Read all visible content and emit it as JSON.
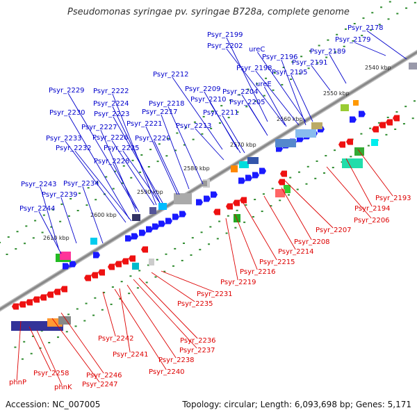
{
  "title": "Pseudomonas syringae pv. syringae B728a, complete genome",
  "footer": {
    "accession": "Accession: NC_007005",
    "summary": "Topology: circular; Length: 6,093,698 bp; Genes: 5,171"
  },
  "colors": {
    "forward_label": "#0000cc",
    "reverse_label": "#dd0000",
    "forward_gene": "#1a1aff",
    "reverse_gene": "#ee1111",
    "backbone": "#888888",
    "ruler_dot": "#2e8b2e"
  },
  "kbp_labels": [
    "2540 kbp",
    "2550 kbp",
    "2560 kbp",
    "2570 kbp",
    "2580 kbp",
    "2590 kbp",
    "2600 kbp",
    "2610 kbp"
  ],
  "forward_labels": [
    "Psyr_2199",
    "Psyr_2178",
    "Psyr_2202",
    "ureC",
    "Psyr_2179",
    "Psyr_2196",
    "Psyr_2189",
    "Psyr_2198",
    "Psyr_2191",
    "Psyr_2195",
    "Psyr_2212",
    "ureE",
    "Psyr_2229",
    "Psyr_2222",
    "Psyr_2209",
    "Psyr_2204",
    "Psyr_2224",
    "Psyr_2218",
    "Psyr_2210",
    "Psyr_2205",
    "Psyr_2230",
    "Psyr_2223",
    "Psyr_2217",
    "Psyr_2211",
    "Psyr_2221",
    "Psyr_2227",
    "Psyr_2213",
    "Psyr_2226",
    "Psyr_2220",
    "Psyr_2233",
    "Psyr_2232",
    "Psyr_2225",
    "Psyr_2228",
    "Psyr_2243",
    "Psyr_2234",
    "Psyr_2239",
    "Psyr_2244"
  ],
  "reverse_labels": [
    "Psyr_2193",
    "Psyr_2194",
    "Psyr_2206",
    "Psyr_2207",
    "Psyr_2208",
    "Psyr_2214",
    "Psyr_2215",
    "Psyr_2216",
    "Psyr_2219",
    "Psyr_2231",
    "Psyr_2235",
    "Psyr_2236",
    "Psyr_2242",
    "Psyr_2237",
    "Psyr_2241",
    "Psyr_2238",
    "Psyr_2240",
    "Psyr_2258",
    "Psyr_2246",
    "phnP",
    "Psyr_2247",
    "phnK"
  ]
}
